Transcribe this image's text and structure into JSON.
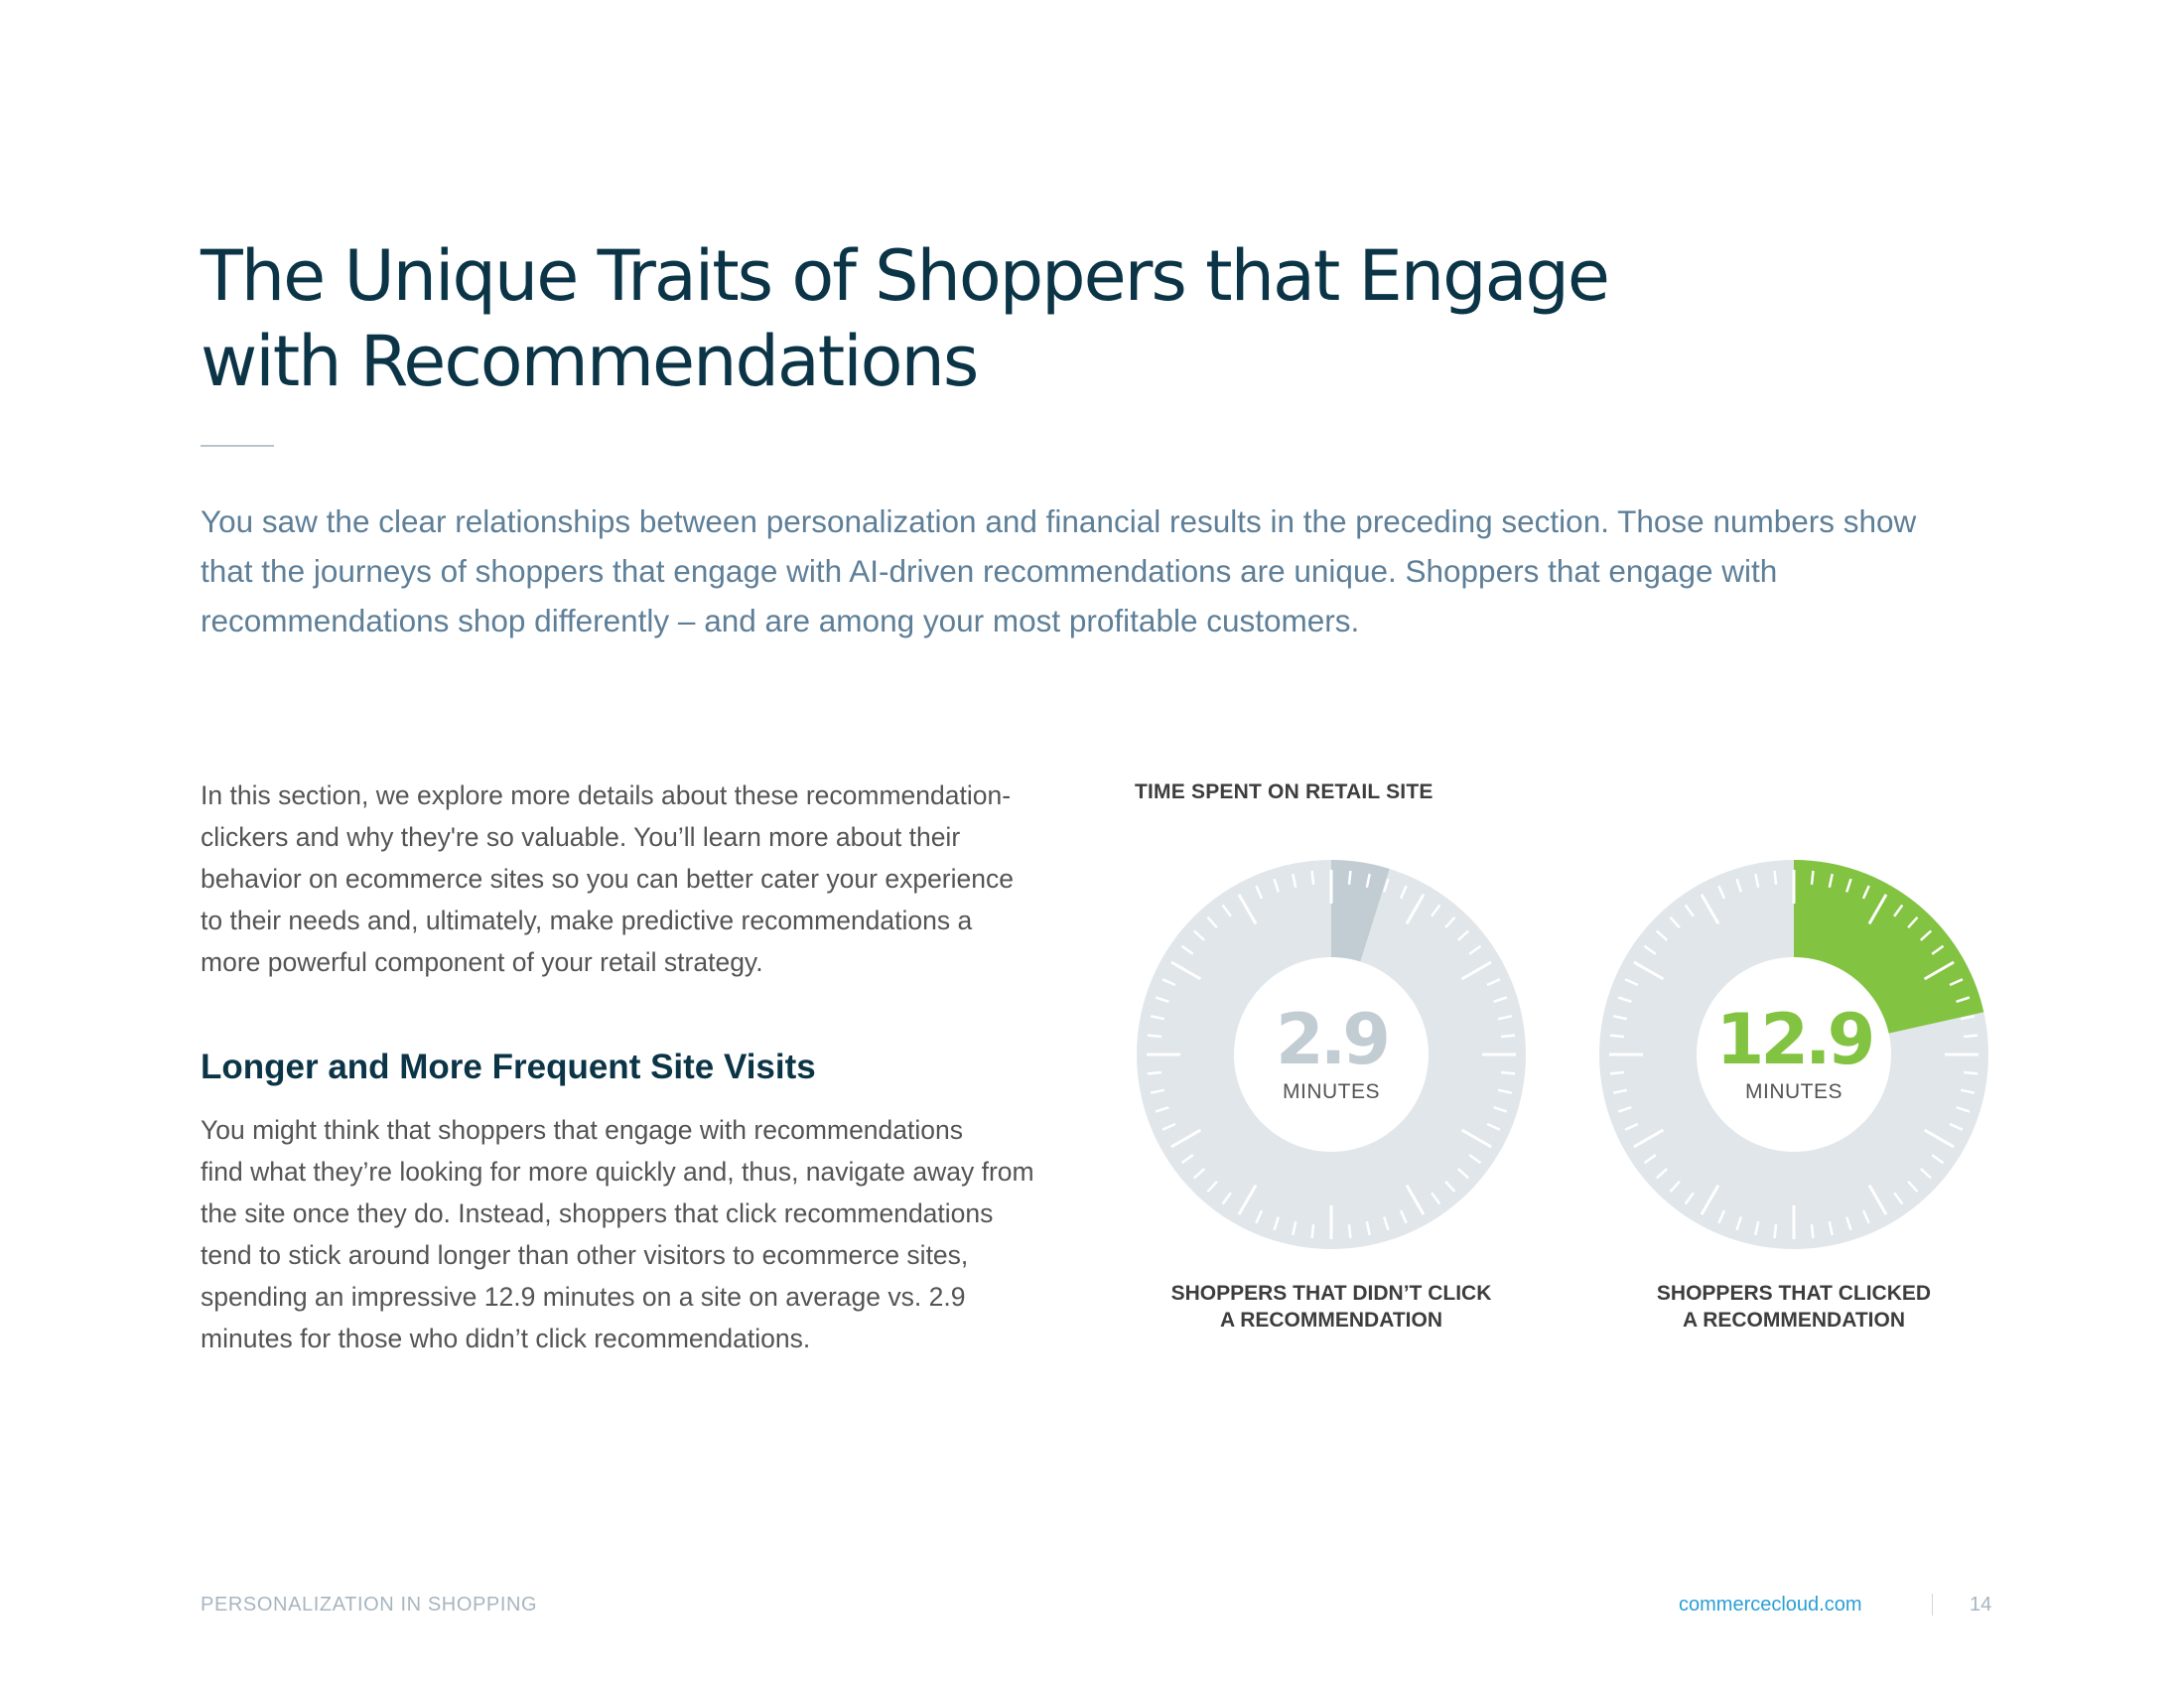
{
  "title": {
    "lines": [
      "The Unique Traits of Shoppers that Engage",
      "with Recommendations"
    ]
  },
  "intro": {
    "lines": [
      "You saw the clear relationships between personalization and financial results in the preceding section. Those numbers show",
      "that the journeys of shoppers that engage with AI-driven recommendations are unique. Shoppers that engage with",
      "recommendations shop differently – and are among your most profitable customers."
    ]
  },
  "section_paragraph": {
    "lines": [
      "In this section, we explore more details about these recommendation-",
      "clickers and why they're so valuable. You’ll learn more about their",
      "behavior on ecommerce sites so you can better cater your experience",
      "to their needs and, ultimately, make predictive recommendations a",
      "more powerful component of your retail strategy."
    ]
  },
  "subhead": "Longer and More Frequent Site Visits",
  "subhead_paragraph": {
    "lines": [
      "You might think that shoppers that engage with recommendations",
      "find what they’re looking for more quickly and, thus, navigate away from",
      "the site once they do. Instead, shoppers that click recommendations",
      "tend to stick around longer than other visitors to ecommerce sites,",
      "spending an impressive 12.9 minutes on a site on average vs. 2.9",
      "minutes for those who didn’t click recommendations."
    ]
  },
  "chart_data": {
    "type": "gauge",
    "title": "TIME SPENT ON RETAIL SITE",
    "scale_max_minutes": 60,
    "unit": "MINUTES",
    "series": [
      {
        "value": 2.9,
        "value_label": "2.9",
        "caption": [
          "SHOPPERS THAT DIDN’T CLICK",
          "A RECOMMENDATION"
        ],
        "color": "#c2ccd3"
      },
      {
        "value": 12.9,
        "value_label": "12.9",
        "caption": [
          "SHOPPERS THAT CLICKED",
          "A RECOMMENDATION"
        ],
        "color": "#82c341"
      }
    ],
    "track_color": "#e1e6ea"
  },
  "footer": {
    "left": "PERSONALIZATION IN SHOPPING",
    "link": "commercecloud.com",
    "page": "14"
  }
}
